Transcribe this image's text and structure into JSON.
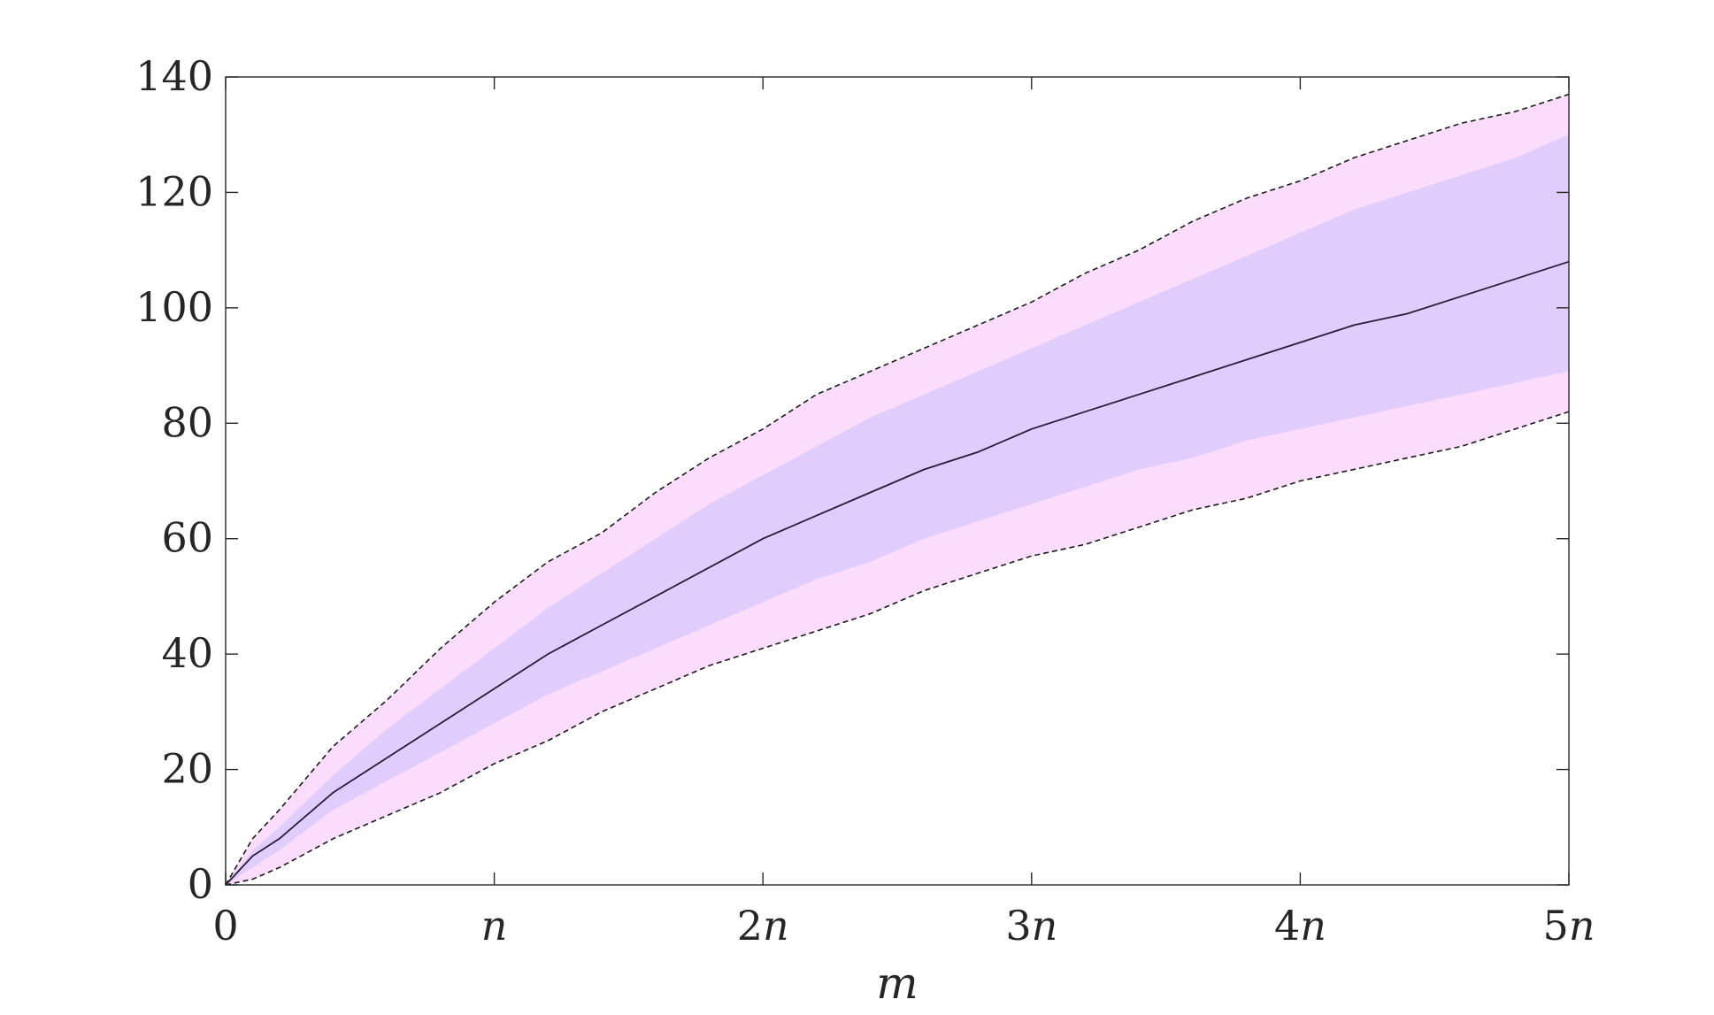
{
  "chart_data": {
    "type": "area",
    "title": "",
    "xlabel": "m",
    "ylabel": "",
    "xlim": [
      0,
      5
    ],
    "ylim": [
      0,
      140
    ],
    "grid": false,
    "legend": "none",
    "x_ticks": [
      {
        "value": 0,
        "label": "0"
      },
      {
        "value": 1,
        "label": "n"
      },
      {
        "value": 2,
        "label": "2n"
      },
      {
        "value": 3,
        "label": "3n"
      },
      {
        "value": 4,
        "label": "4n"
      },
      {
        "value": 5,
        "label": "5n"
      }
    ],
    "y_ticks": [
      {
        "value": 0,
        "label": "0"
      },
      {
        "value": 20,
        "label": "20"
      },
      {
        "value": 40,
        "label": "40"
      },
      {
        "value": 60,
        "label": "60"
      },
      {
        "value": 80,
        "label": "80"
      },
      {
        "value": 100,
        "label": "100"
      },
      {
        "value": 120,
        "label": "120"
      },
      {
        "value": 140,
        "label": "140"
      }
    ],
    "x": [
      0,
      0.1,
      0.2,
      0.4,
      0.6,
      0.8,
      1.0,
      1.2,
      1.4,
      1.6,
      1.8,
      2.0,
      2.2,
      2.4,
      2.6,
      2.8,
      3.0,
      3.2,
      3.4,
      3.6,
      3.8,
      4.0,
      4.2,
      4.4,
      4.6,
      4.8,
      5.0
    ],
    "colors": {
      "outer_band": "#fcdcfc",
      "inner_band": "#e1cdfb",
      "median_line": "#2a1a3a",
      "bound_lines": "#1a1a1a",
      "axis": "#262626"
    },
    "series": [
      {
        "role": "outer_band_upper",
        "values": [
          0,
          8,
          13,
          24,
          32,
          41,
          49,
          56,
          61,
          68,
          74,
          79,
          85,
          89,
          93,
          97,
          101,
          106,
          110,
          115,
          119,
          122,
          126,
          129,
          132,
          134,
          137
        ]
      },
      {
        "role": "inner_band_upper",
        "values": [
          0,
          6,
          10,
          19,
          27,
          34,
          41,
          48,
          54,
          60,
          66,
          71,
          76,
          81,
          85,
          89,
          93,
          97,
          101,
          105,
          109,
          113,
          117,
          120,
          123,
          126,
          130
        ]
      },
      {
        "role": "median",
        "values": [
          0,
          5,
          8,
          16,
          22,
          28,
          34,
          40,
          45,
          50,
          55,
          60,
          64,
          68,
          72,
          75,
          79,
          82,
          85,
          88,
          91,
          94,
          97,
          99,
          102,
          105,
          108
        ]
      },
      {
        "role": "inner_band_lower",
        "values": [
          0,
          3,
          6,
          13,
          18,
          23,
          28,
          33,
          37,
          41,
          45,
          49,
          53,
          56,
          60,
          63,
          66,
          69,
          72,
          74,
          77,
          79,
          81,
          83,
          85,
          87,
          89
        ]
      },
      {
        "role": "outer_band_lower",
        "values": [
          0,
          1,
          3,
          8,
          12,
          16,
          21,
          25,
          30,
          34,
          38,
          41,
          44,
          47,
          51,
          54,
          57,
          59,
          62,
          65,
          67,
          70,
          72,
          74,
          76,
          79,
          82
        ]
      }
    ]
  }
}
